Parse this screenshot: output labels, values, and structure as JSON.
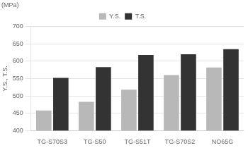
{
  "chart_data": {
    "type": "bar",
    "categories": [
      "TG-S70S3",
      "TG-S50",
      "TG-S51T",
      "TG-S70S2",
      "NO65G"
    ],
    "series": [
      {
        "name": "Y.S.",
        "color": "#b8b8b8",
        "values": [
          458,
          483,
          518,
          560,
          582
        ]
      },
      {
        "name": "T.S.",
        "color": "#333333",
        "values": [
          552,
          583,
          618,
          620,
          635
        ]
      }
    ],
    "ylabel": "Y.S., T.S.",
    "annotations": [
      "(MPa)"
    ],
    "ylim": [
      400,
      700
    ],
    "yticks": [
      400,
      450,
      500,
      550,
      600,
      650,
      700
    ],
    "grid": true,
    "legend": "top"
  }
}
